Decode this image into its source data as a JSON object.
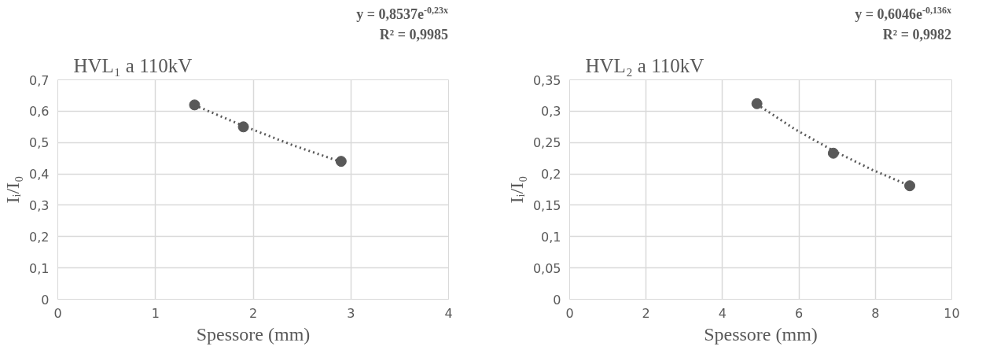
{
  "chart_data": [
    {
      "type": "scatter",
      "title": "HVL₁ a 110kV",
      "xlabel": "Spessore (mm)",
      "ylabel": "Iᵢ/I₀",
      "annotations": [
        "y = 0,8537e$^{-0,23x}$",
        "R² = 0,9985"
      ],
      "xlim": [
        0,
        4
      ],
      "xticks": [
        0,
        1,
        2,
        3,
        4
      ],
      "ylim": [
        0,
        0.7
      ],
      "yticks": [
        {
          "value": 0,
          "label": "0"
        },
        {
          "value": 0.1,
          "label": "0,1"
        },
        {
          "value": 0.2,
          "label": "0,2"
        },
        {
          "value": 0.3,
          "label": "0,3"
        },
        {
          "value": 0.4,
          "label": "0,4"
        },
        {
          "value": 0.5,
          "label": "0,5"
        },
        {
          "value": 0.6,
          "label": "0,6"
        },
        {
          "value": 0.7,
          "label": "0,7"
        }
      ],
      "grid": true,
      "marker": "circle",
      "series": [
        {
          "type": "scatter",
          "color": "#595959",
          "x": [
            1.4,
            1.9,
            2.9
          ],
          "values": [
            0.62,
            0.55,
            0.44
          ]
        },
        {
          "type": "line",
          "color": "#595959",
          "line_style": "dotted",
          "marker": "none",
          "x": [
            1.4,
            1.9,
            2.4,
            2.9
          ],
          "values": [
            0.619,
            0.553,
            0.492,
            0.438
          ]
        }
      ]
    },
    {
      "type": "scatter",
      "title": "HVL₂ a 110kV",
      "xlabel": "Spessore (mm)",
      "ylabel": "Iᵢ/I₀",
      "annotations": [
        "y = 0,6046e$^{-0,136x}$",
        "R² = 0,9982"
      ],
      "xlim": [
        0,
        10
      ],
      "xticks": [
        0,
        2,
        4,
        6,
        8,
        10
      ],
      "ylim": [
        0,
        0.35
      ],
      "yticks": [
        {
          "value": 0,
          "label": "0"
        },
        {
          "value": 0.05,
          "label": "0,05"
        },
        {
          "value": 0.1,
          "label": "0,1"
        },
        {
          "value": 0.15,
          "label": "0,15"
        },
        {
          "value": 0.2,
          "label": "0,2"
        },
        {
          "value": 0.25,
          "label": "0,25"
        },
        {
          "value": 0.3,
          "label": "0,3"
        },
        {
          "value": 0.35,
          "label": "0,35"
        }
      ],
      "grid": true,
      "marker": "circle",
      "series": [
        {
          "type": "scatter",
          "color": "#595959",
          "x": [
            4.9,
            6.9,
            8.9
          ],
          "values": [
            0.312,
            0.233,
            0.181
          ]
        },
        {
          "type": "line",
          "color": "#595959",
          "line_style": "dotted",
          "marker": "none",
          "x": [
            4.9,
            5.9,
            6.9,
            7.9,
            8.9
          ],
          "values": [
            0.311,
            0.271,
            0.237,
            0.207,
            0.181
          ]
        }
      ]
    }
  ]
}
